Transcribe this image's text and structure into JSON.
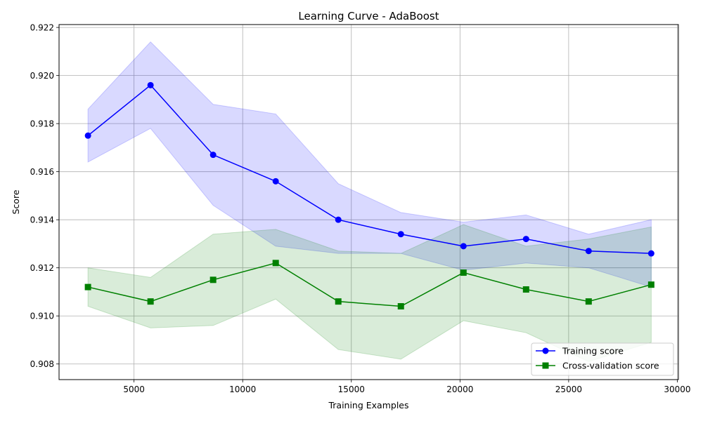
{
  "chart_data": {
    "type": "line",
    "title": "Learning Curve - AdaBoost",
    "xlabel": "Training Examples",
    "ylabel": "Score",
    "xlim": [
      1550,
      30050
    ],
    "ylim": [
      0.90735,
      0.92212
    ],
    "xticks": [
      5000,
      10000,
      15000,
      20000,
      25000,
      30000
    ],
    "xtick_labels": [
      "5000",
      "10000",
      "15000",
      "20000",
      "25000",
      "30000"
    ],
    "yticks": [
      0.908,
      0.91,
      0.912,
      0.914,
      0.916,
      0.918,
      0.92,
      0.922
    ],
    "ytick_labels": [
      "0.908",
      "0.910",
      "0.912",
      "0.914",
      "0.916",
      "0.918",
      "0.920",
      "0.922"
    ],
    "grid": true,
    "legend_position": "lower-right",
    "x": [
      2880,
      5760,
      8640,
      11520,
      14400,
      17280,
      20160,
      23040,
      25920,
      28800
    ],
    "series": [
      {
        "name": "Training score",
        "color": "#0000ff",
        "fill_color": "#0000ff",
        "marker": "circle",
        "values": [
          0.9175,
          0.9196,
          0.9167,
          0.9156,
          0.914,
          0.9134,
          0.9129,
          0.9132,
          0.9127,
          0.9126
        ],
        "upper": [
          0.9186,
          0.9214,
          0.9188,
          0.9184,
          0.9155,
          0.9143,
          0.9139,
          0.9142,
          0.9134,
          0.914
        ],
        "lower": [
          0.9164,
          0.9178,
          0.9146,
          0.9129,
          0.9126,
          0.9126,
          0.9119,
          0.9122,
          0.912,
          0.9112
        ]
      },
      {
        "name": "Cross-validation score",
        "color": "#008000",
        "fill_color": "#008000",
        "marker": "square",
        "values": [
          0.9112,
          0.9106,
          0.9115,
          0.9122,
          0.9106,
          0.9104,
          0.9118,
          0.9111,
          0.9106,
          0.9113
        ],
        "upper": [
          0.912,
          0.9116,
          0.9134,
          0.9136,
          0.9127,
          0.9126,
          0.9138,
          0.9129,
          0.9132,
          0.9137
        ],
        "lower": [
          0.9104,
          0.9095,
          0.9096,
          0.9107,
          0.9086,
          0.9082,
          0.9098,
          0.9093,
          0.9081,
          0.9089
        ]
      }
    ]
  }
}
